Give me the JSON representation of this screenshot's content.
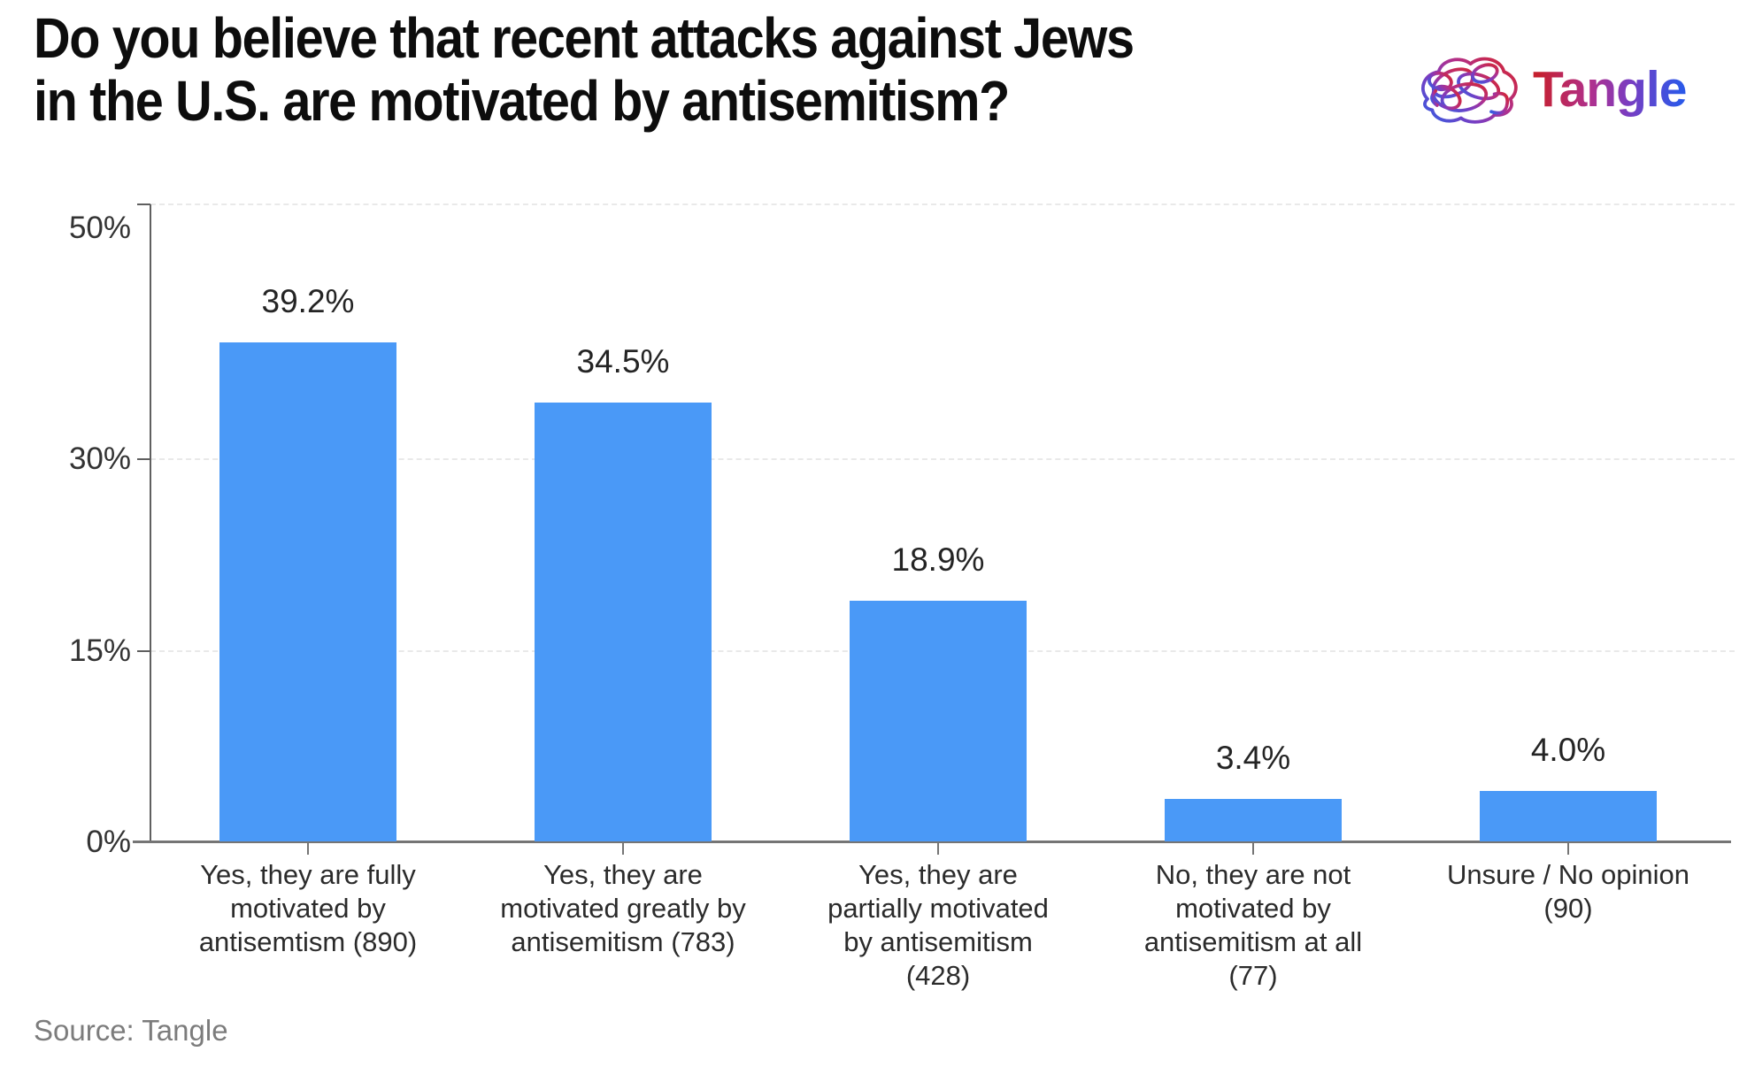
{
  "header": {
    "title": "Do you believe that recent attacks against Jews\nin the U.S. are motivated by antisemitism?",
    "logo_text": "Tangle"
  },
  "footer": {
    "source": "Source: Tangle"
  },
  "colors": {
    "bar_blue": "#4a99f7",
    "axis_gray": "#5f5f5f",
    "gridline_gray": "#e9e9e9",
    "source_gray": "#7c7c7c",
    "logo_gradient": [
      "#c5202f",
      "#8a3fc5",
      "#2c58e8"
    ]
  },
  "chart_data": {
    "type": "bar",
    "title": "Do you believe that recent attacks against Jews in the U.S. are motivated by antisemitism?",
    "categories": [
      "Yes, they are fully motivated by antisemtism (890)",
      "Yes, they are motivated greatly by antisemitism (783)",
      "Yes, they are partially motivated by antisemitism (428)",
      "No, they are not motivated by antisemitism at all (77)",
      "Unsure / No opinion (90)"
    ],
    "category_display": [
      "Yes, they are fully\nmotivated by\nantisemtism (890)",
      "Yes, they are\nmotivated greatly by\nantisemitism (783)",
      "Yes, they are\npartially motivated\nby antisemitism\n(428)",
      "No, they are not\nmotivated by\nantisemitism at all\n(77)",
      "Unsure / No opinion\n(90)"
    ],
    "counts": [
      890,
      783,
      428,
      77,
      90
    ],
    "values": [
      39.2,
      34.5,
      18.9,
      3.4,
      4.0
    ],
    "value_labels": [
      "39.2%",
      "34.5%",
      "18.9%",
      "3.4%",
      "4.0%"
    ],
    "xlabel": "",
    "ylabel": "",
    "ylim": [
      0,
      50
    ],
    "y_ticks": [
      0,
      15,
      30,
      50
    ],
    "y_tick_labels": [
      "0%",
      "15%",
      "30%",
      "50%"
    ],
    "grid": "horizontal dashed at 15/30/50",
    "legend": "none",
    "bar_color": "#4a99f7"
  }
}
